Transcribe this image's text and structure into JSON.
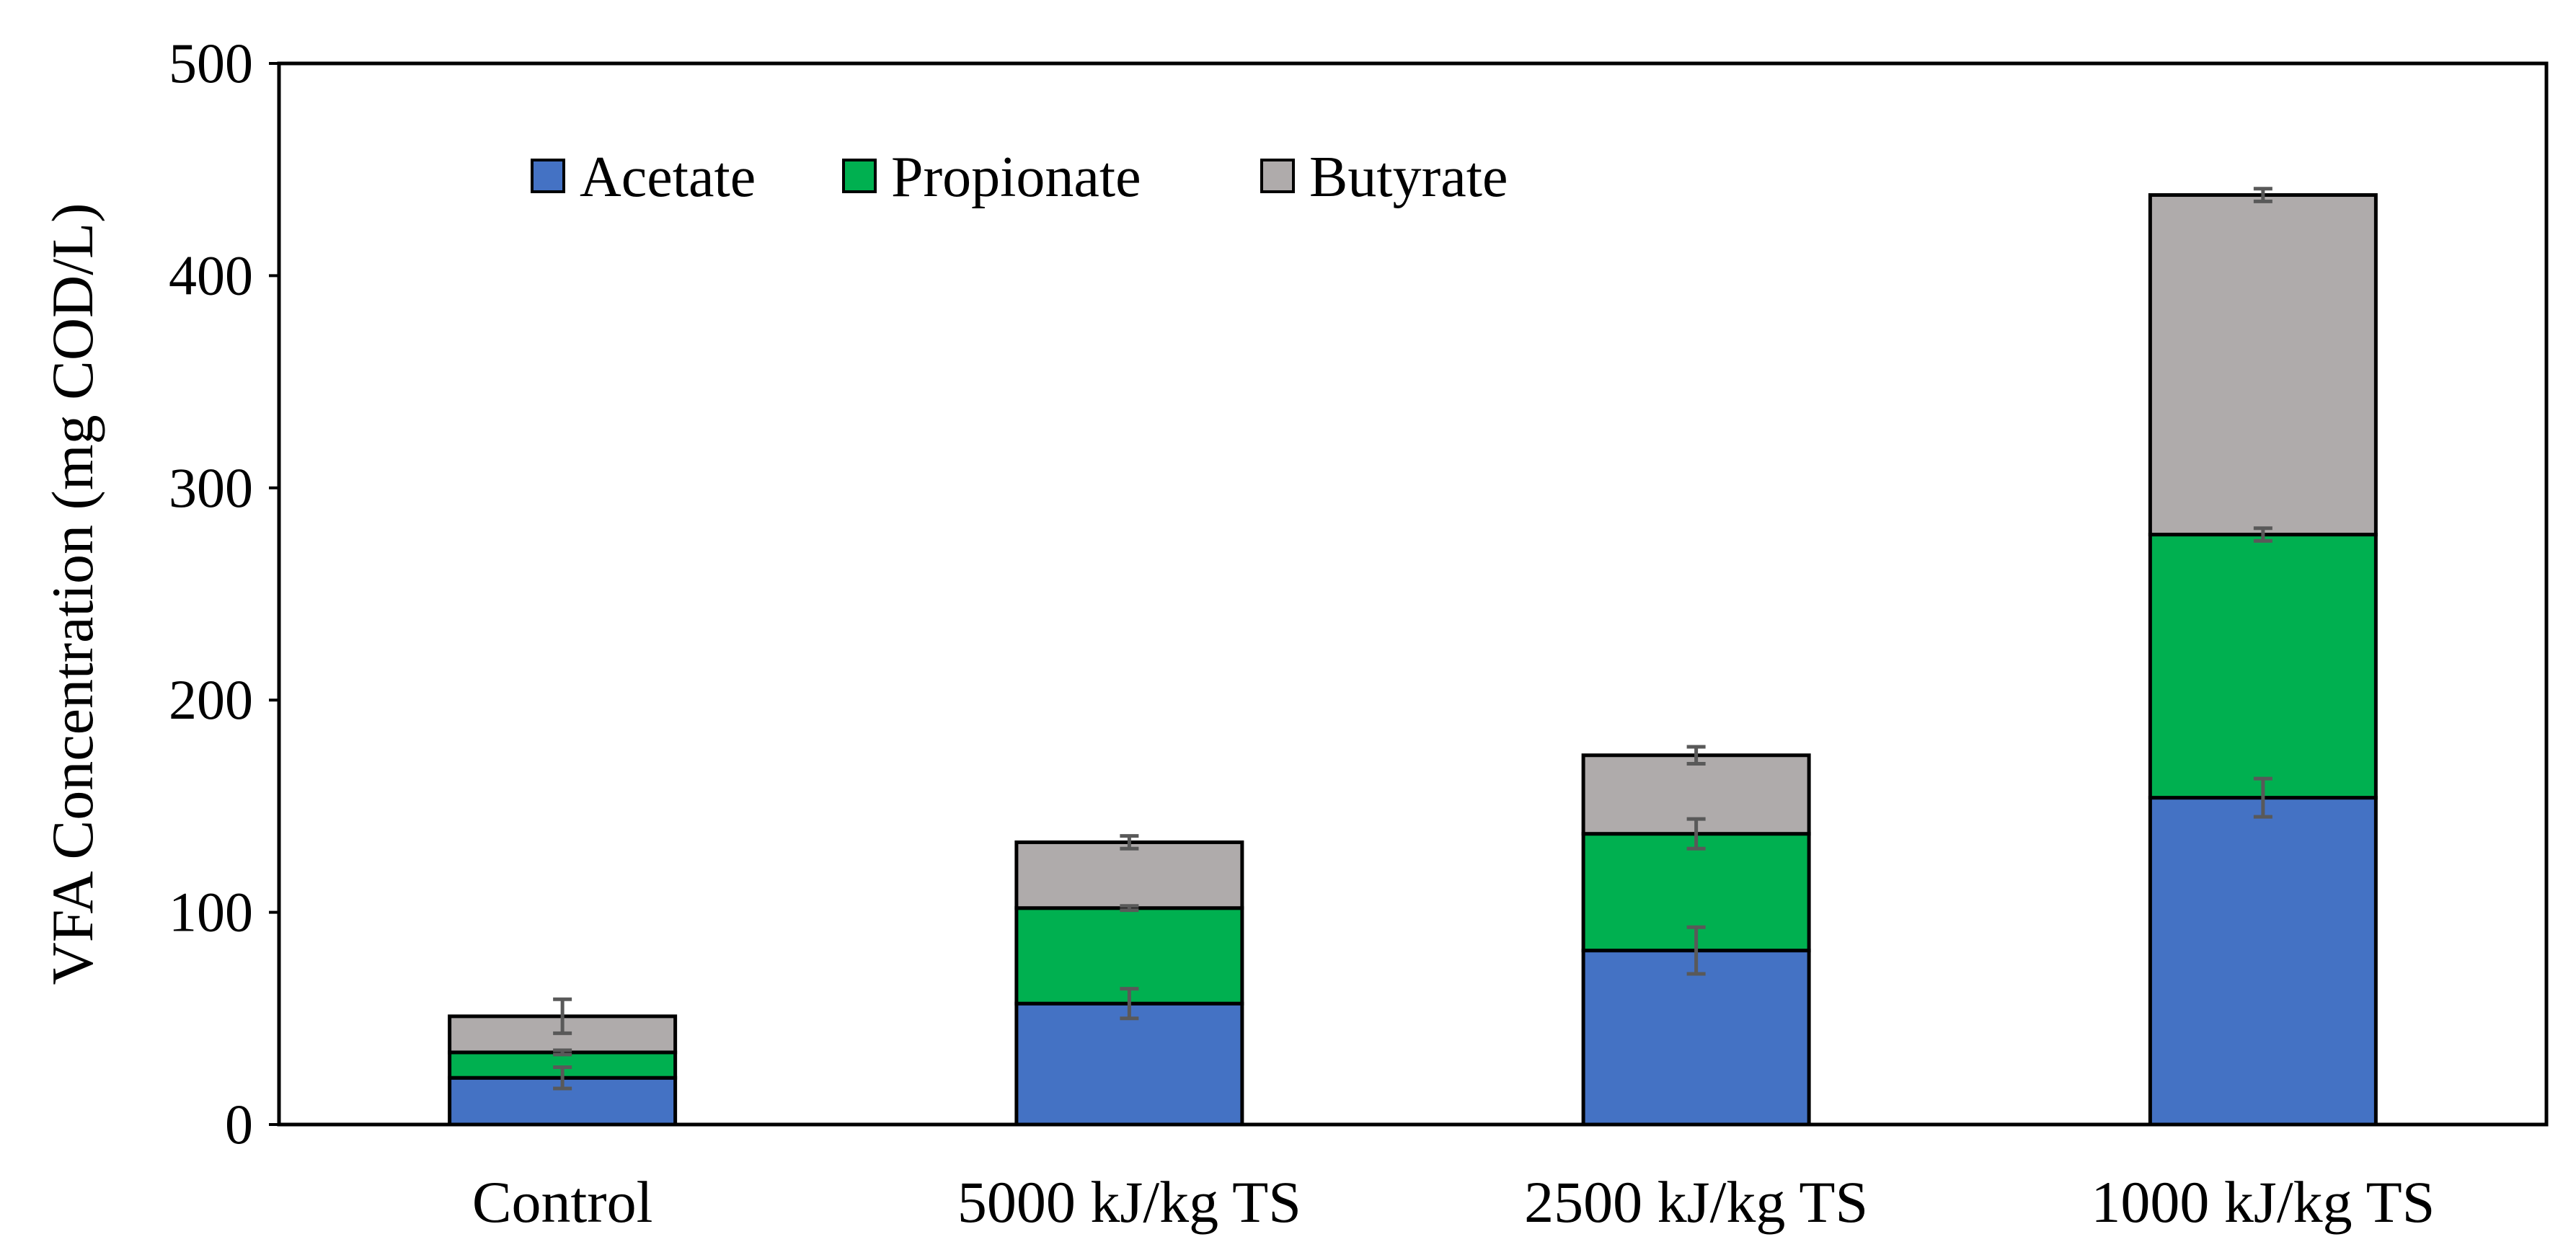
{
  "chart_data": {
    "type": "bar",
    "stacked": true,
    "title": "",
    "xlabel": "",
    "ylabel": "VFA Concentration (mg COD/L)",
    "ylim": [
      0,
      500
    ],
    "yticks": [
      0,
      100,
      200,
      300,
      400,
      500
    ],
    "legend_position": "top-left",
    "categories": [
      "Control",
      "5000 kJ/kg TS",
      "2500 kJ/kg TS",
      "1000 kJ/kg TS"
    ],
    "series": [
      {
        "name": "Acetate",
        "color": "#4472C4",
        "values": [
          22,
          57,
          82,
          154
        ],
        "errors": [
          5,
          7,
          11,
          9
        ]
      },
      {
        "name": "Propionate",
        "color": "#00B050",
        "values": [
          12,
          45,
          55,
          124
        ],
        "errors": [
          1,
          1,
          7,
          3
        ]
      },
      {
        "name": "Butyrate",
        "color": "#AFABAB",
        "values": [
          17,
          31,
          37,
          160
        ],
        "errors": [
          8,
          3,
          4,
          3
        ]
      }
    ]
  }
}
